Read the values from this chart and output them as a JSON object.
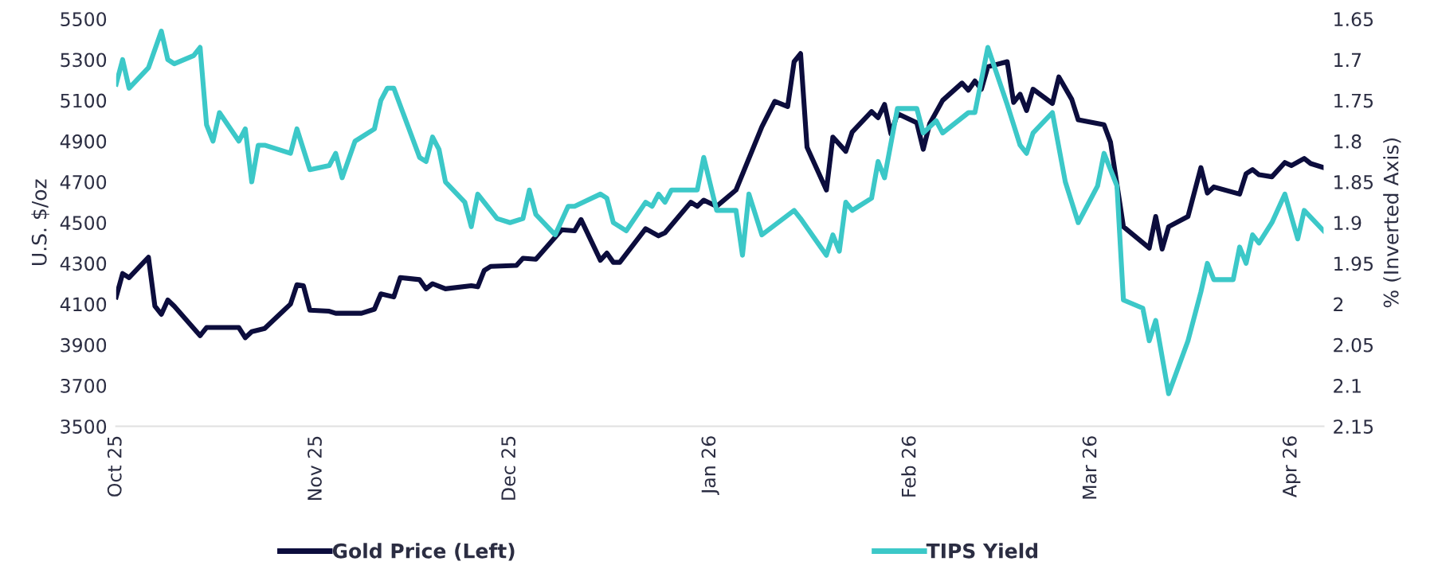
{
  "chart_data": {
    "type": "line",
    "ylabel": "U.S. $/oz",
    "y2label": "% (Inverted Axis)",
    "xticks": [
      {
        "value": "2025-10-01",
        "label": "Oct 25"
      },
      {
        "value": "2025-11-01",
        "label": "Nov 25"
      },
      {
        "value": "2025-12-01",
        "label": "Dec 25"
      },
      {
        "value": "2026-01-01",
        "label": "Jan 26"
      },
      {
        "value": "2026-02-01",
        "label": "Feb 26"
      },
      {
        "value": "2026-03-01",
        "label": "Mar 26"
      },
      {
        "value": "2026-04-01",
        "label": "Apr 26"
      }
    ],
    "ylim": [
      3500,
      5500
    ],
    "yticks": [
      3500,
      3700,
      3900,
      4100,
      4300,
      4500,
      4700,
      4900,
      5100,
      5300,
      5500
    ],
    "y2lim": [
      2.15,
      1.65
    ],
    "y2ticks": [
      {
        "value": 2.15,
        "label": "2.15"
      },
      {
        "value": 2.1,
        "label": "2.1"
      },
      {
        "value": 2.05,
        "label": "2.05"
      },
      {
        "value": 2.0,
        "label": "2"
      },
      {
        "value": 1.95,
        "label": "1.95"
      },
      {
        "value": 1.9,
        "label": "1.9"
      },
      {
        "value": 1.85,
        "label": "1.85"
      },
      {
        "value": 1.8,
        "label": "1.8"
      },
      {
        "value": 1.75,
        "label": "1.75"
      },
      {
        "value": 1.7,
        "label": "1.7"
      },
      {
        "value": 1.65,
        "label": "1.65"
      }
    ],
    "xlim": [
      "2025-10-01",
      "2026-04-06"
    ],
    "grid": false,
    "legend": "bottom",
    "marker": "none",
    "line_style": "solid",
    "series": [
      {
        "name": "Gold Price (Left)",
        "color": "#0c0d3d",
        "x": [
          "2025-10-01",
          "2025-10-02",
          "2025-10-03",
          "2025-10-06",
          "2025-10-07",
          "2025-10-08",
          "2025-10-09",
          "2025-10-10",
          "2025-10-14",
          "2025-10-15",
          "2025-10-20",
          "2025-10-21",
          "2025-10-22",
          "2025-10-24",
          "2025-10-27",
          "2025-10-28",
          "2025-10-29",
          "2025-10-30",
          "2025-10-31",
          "2025-11-03",
          "2025-11-04",
          "2025-11-08",
          "2025-11-10",
          "2025-11-11",
          "2025-11-13",
          "2025-11-14",
          "2025-11-17",
          "2025-11-18",
          "2025-11-19",
          "2025-11-21",
          "2025-11-25",
          "2025-11-26",
          "2025-11-27",
          "2025-11-28",
          "2025-12-02",
          "2025-12-03",
          "2025-12-05",
          "2025-12-09",
          "2025-12-11",
          "2025-12-12",
          "2025-12-15",
          "2025-12-16",
          "2025-12-17",
          "2025-12-18",
          "2025-12-22",
          "2025-12-24",
          "2025-12-25",
          "2025-12-29",
          "2025-12-30",
          "2025-12-31",
          "2026-01-02",
          "2026-01-05",
          "2026-01-09",
          "2026-01-11",
          "2026-01-13",
          "2026-01-14",
          "2026-01-15",
          "2026-01-16",
          "2026-01-19",
          "2026-01-20",
          "2026-01-22",
          "2026-01-23",
          "2026-01-26",
          "2026-01-27",
          "2026-01-28",
          "2026-01-29",
          "2026-01-30",
          "2026-02-02",
          "2026-02-03",
          "2026-02-04",
          "2026-02-06",
          "2026-02-09",
          "2026-02-10",
          "2026-02-11",
          "2026-02-12",
          "2026-02-13",
          "2026-02-16",
          "2026-02-17",
          "2026-02-18",
          "2026-02-19",
          "2026-02-20",
          "2026-02-23",
          "2026-02-24",
          "2026-02-26",
          "2026-02-27",
          "2026-03-03",
          "2026-03-04",
          "2026-03-06",
          "2026-03-10",
          "2026-03-11",
          "2026-03-12",
          "2026-03-13",
          "2026-03-16",
          "2026-03-18",
          "2026-03-19",
          "2026-03-20",
          "2026-03-24",
          "2026-03-25",
          "2026-03-26",
          "2026-03-27",
          "2026-03-29",
          "2026-03-31",
          "2026-04-01",
          "2026-04-03",
          "2026-04-04",
          "2026-04-06"
        ],
        "values": [
          4135,
          4250,
          4230,
          4330,
          4090,
          4050,
          4120,
          4090,
          3945,
          3985,
          3985,
          3935,
          3965,
          3980,
          4070,
          4100,
          4195,
          4190,
          4070,
          4065,
          4055,
          4055,
          4075,
          4150,
          4135,
          4230,
          4220,
          4175,
          4200,
          4175,
          4190,
          4185,
          4265,
          4285,
          4290,
          4325,
          4320,
          4465,
          4460,
          4515,
          4315,
          4350,
          4305,
          4305,
          4470,
          4435,
          4450,
          4600,
          4580,
          4610,
          4580,
          4660,
          4970,
          5095,
          5070,
          5290,
          5330,
          4870,
          4660,
          4920,
          4850,
          4945,
          5045,
          5015,
          5080,
          4935,
          5035,
          4990,
          4860,
          4985,
          5100,
          5185,
          5150,
          5195,
          5155,
          5265,
          5290,
          5090,
          5130,
          5050,
          5155,
          5085,
          5215,
          5105,
          5005,
          4980,
          4895,
          4480,
          4375,
          4530,
          4370,
          4480,
          4530,
          4770,
          4645,
          4675,
          4640,
          4740,
          4760,
          4735,
          4725,
          4795,
          4780,
          4815,
          4790,
          4770
        ]
      },
      {
        "name": "TIPS Yield",
        "color": "#3cc8c8",
        "axis": "y2",
        "x": [
          "2025-10-01",
          "2025-10-02",
          "2025-10-03",
          "2025-10-06",
          "2025-10-08",
          "2025-10-09",
          "2025-10-10",
          "2025-10-13",
          "2025-10-14",
          "2025-10-15",
          "2025-10-16",
          "2025-10-17",
          "2025-10-20",
          "2025-10-21",
          "2025-10-22",
          "2025-10-23",
          "2025-10-24",
          "2025-10-28",
          "2025-10-29",
          "2025-10-31",
          "2025-11-03",
          "2025-11-04",
          "2025-11-05",
          "2025-11-07",
          "2025-11-10",
          "2025-11-11",
          "2025-11-12",
          "2025-11-13",
          "2025-11-17",
          "2025-11-18",
          "2025-11-19",
          "2025-11-20",
          "2025-11-21",
          "2025-11-24",
          "2025-11-25",
          "2025-11-26",
          "2025-11-28",
          "2025-11-29",
          "2025-12-01",
          "2025-12-03",
          "2025-12-04",
          "2025-12-05",
          "2025-12-08",
          "2025-12-10",
          "2025-12-11",
          "2025-12-15",
          "2025-12-16",
          "2025-12-17",
          "2025-12-19",
          "2025-12-22",
          "2025-12-23",
          "2025-12-24",
          "2025-12-25",
          "2025-12-26",
          "2025-12-30",
          "2025-12-31",
          "2026-01-02",
          "2026-01-05",
          "2026-01-06",
          "2026-01-07",
          "2026-01-09",
          "2026-01-14",
          "2026-01-15",
          "2026-01-19",
          "2026-01-20",
          "2026-01-21",
          "2026-01-22",
          "2026-01-23",
          "2026-01-26",
          "2026-01-27",
          "2026-01-28",
          "2026-01-30",
          "2026-02-02",
          "2026-02-03",
          "2026-02-05",
          "2026-02-06",
          "2026-02-10",
          "2026-02-11",
          "2026-02-13",
          "2026-02-16",
          "2026-02-18",
          "2026-02-19",
          "2026-02-20",
          "2026-02-23",
          "2026-02-25",
          "2026-02-27",
          "2026-03-02",
          "2026-03-03",
          "2026-03-05",
          "2026-03-06",
          "2026-03-09",
          "2026-03-10",
          "2026-03-11",
          "2026-03-13",
          "2026-03-16",
          "2026-03-18",
          "2026-03-19",
          "2026-03-20",
          "2026-03-23",
          "2026-03-24",
          "2026-03-25",
          "2026-03-26",
          "2026-03-27",
          "2026-03-29",
          "2026-03-31",
          "2026-04-02",
          "2026-04-03",
          "2026-04-06"
        ],
        "values": [
          1.73,
          1.7,
          1.735,
          1.71,
          1.665,
          1.7,
          1.705,
          1.695,
          1.685,
          1.78,
          1.8,
          1.765,
          1.8,
          1.785,
          1.85,
          1.805,
          1.805,
          1.815,
          1.785,
          1.835,
          1.83,
          1.815,
          1.845,
          1.8,
          1.785,
          1.75,
          1.735,
          1.735,
          1.82,
          1.825,
          1.795,
          1.81,
          1.85,
          1.875,
          1.905,
          1.865,
          1.885,
          1.895,
          1.9,
          1.895,
          1.86,
          1.89,
          1.915,
          1.88,
          1.88,
          1.865,
          1.87,
          1.9,
          1.91,
          1.875,
          1.88,
          1.865,
          1.875,
          1.86,
          1.86,
          1.82,
          1.885,
          1.885,
          1.94,
          1.865,
          1.915,
          1.885,
          1.895,
          1.94,
          1.915,
          1.935,
          1.875,
          1.885,
          1.87,
          1.825,
          1.845,
          1.76,
          1.76,
          1.79,
          1.775,
          1.79,
          1.765,
          1.765,
          1.685,
          1.755,
          1.805,
          1.815,
          1.79,
          1.765,
          1.85,
          1.9,
          1.855,
          1.815,
          1.855,
          1.995,
          2.005,
          2.045,
          2.02,
          2.11,
          2.045,
          1.985,
          1.95,
          1.97,
          1.97,
          1.93,
          1.95,
          1.915,
          1.925,
          1.9,
          1.865,
          1.92,
          1.885,
          1.91
        ]
      }
    ]
  }
}
